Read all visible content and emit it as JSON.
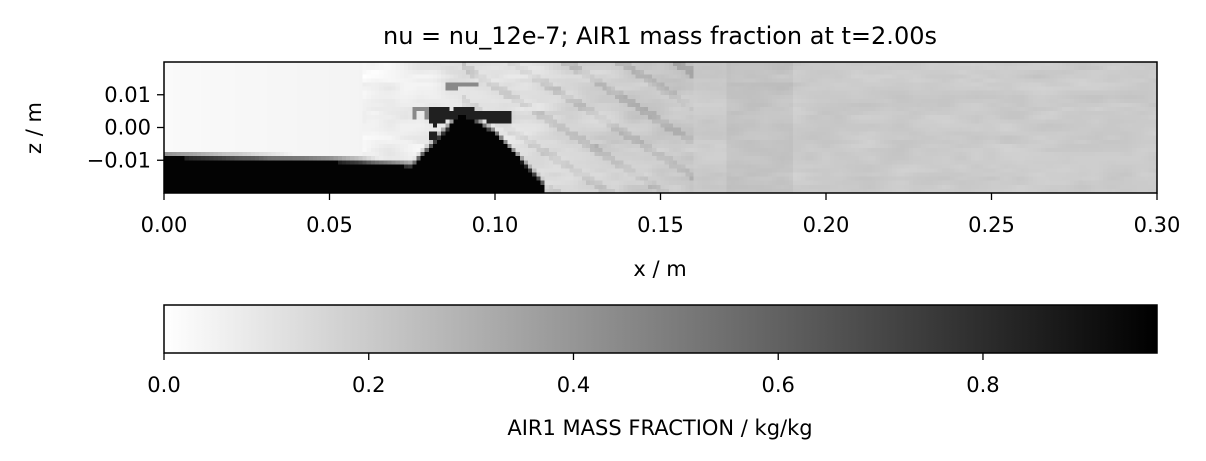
{
  "chart_data": [
    {
      "type": "heatmap",
      "title": "nu = nu_12e-7; AIR1 mass fraction at t=2.00s",
      "xlabel": "x / m",
      "ylabel": "z / m",
      "xlim": [
        0.0,
        0.3
      ],
      "ylim": [
        -0.02,
        0.02
      ],
      "xticks": [
        {
          "value": 0.0,
          "label": "0.00"
        },
        {
          "value": 0.05,
          "label": "0.05"
        },
        {
          "value": 0.1,
          "label": "0.10"
        },
        {
          "value": 0.15,
          "label": "0.15"
        },
        {
          "value": 0.2,
          "label": "0.20"
        },
        {
          "value": 0.25,
          "label": "0.25"
        },
        {
          "value": 0.3,
          "label": "0.30"
        }
      ],
      "yticks": [
        {
          "value": 0.01,
          "label": "0.01"
        },
        {
          "value": 0.0,
          "label": "0.00"
        },
        {
          "value": -0.01,
          "label": "−0.01"
        }
      ],
      "colormap": "gray_r",
      "field_description": "dense AIR1 layer (fraction near 1) along bottom from x=0 to ~0.11 below z≈-0.01; mixing zone around x=0.08-0.16; downstream mostly uniform fraction ~0.18-0.25",
      "profile": [
        {
          "x": 0.0,
          "layer_top_z": -0.0092
        },
        {
          "x": 0.05,
          "layer_top_z": -0.0105
        },
        {
          "x": 0.075,
          "layer_top_z": -0.012
        },
        {
          "x": 0.09,
          "layer_top_z": 0.004
        },
        {
          "x": 0.1,
          "layer_top_z": -0.002
        },
        {
          "x": 0.115,
          "layer_top_z": -0.018
        }
      ]
    },
    {
      "type": "colorbar",
      "label": "AIR1 MASS FRACTION / kg/kg",
      "range": [
        0.0,
        0.97
      ],
      "ticks": [
        {
          "value": 0.0,
          "label": "0.0"
        },
        {
          "value": 0.2,
          "label": "0.2"
        },
        {
          "value": 0.4,
          "label": "0.4"
        },
        {
          "value": 0.6,
          "label": "0.6"
        },
        {
          "value": 0.8,
          "label": "0.8"
        }
      ]
    }
  ]
}
